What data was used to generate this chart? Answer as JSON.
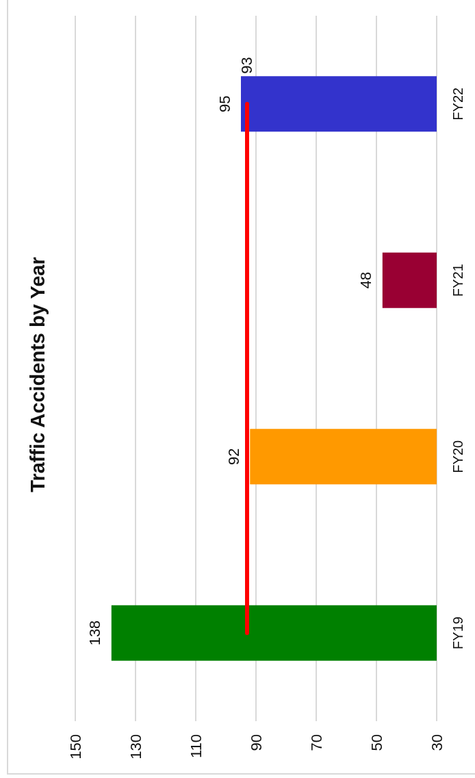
{
  "chart_data": {
    "type": "bar",
    "orientation": "horizontal",
    "title": "Traffic Accidents by Year",
    "categories": [
      "FY22",
      "FY21",
      "FY20",
      "FY19"
    ],
    "values": [
      95,
      48,
      92,
      138
    ],
    "colors": [
      "#3333cc",
      "#990033",
      "#ff9900",
      "#008000"
    ],
    "xlim": [
      150,
      30
    ],
    "xticks": [
      150,
      130,
      110,
      90,
      70,
      50,
      30
    ],
    "grid": "x",
    "data_labels": true,
    "ref_lines": [
      {
        "axis": "x",
        "value": 93,
        "label": "93",
        "color": "#ff0000",
        "line_style": "solid"
      }
    ]
  }
}
